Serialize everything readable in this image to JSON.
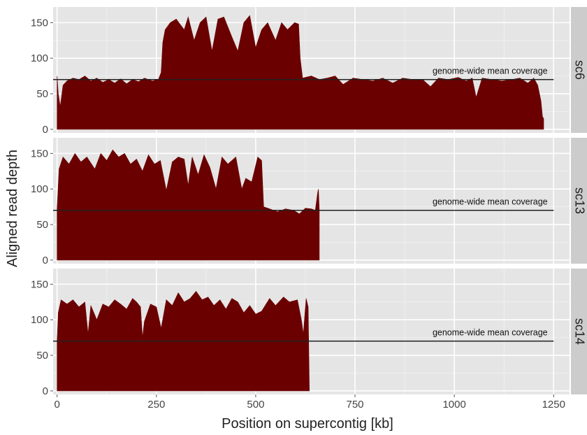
{
  "chart_data": {
    "type": "area",
    "xlabel": "Position on supercontig [kb]",
    "ylabel": "Aligned read depth",
    "xlim": [
      -10,
      1290
    ],
    "ylim": [
      -5,
      172
    ],
    "x_ticks": [
      0,
      250,
      500,
      750,
      1000,
      1250
    ],
    "y_ticks": [
      0,
      50,
      100,
      150
    ],
    "grid": true,
    "fill_color": "#6b0000",
    "panel_background": "#e5e5e5",
    "strip_background": "#cccccc",
    "mean_line": {
      "value": 70,
      "x_end": 1250,
      "label": "genome-wide mean coverage",
      "label_x": 1090
    },
    "facets": [
      {
        "name": "sc6",
        "length_kb": 1225,
        "profile": [
          [
            0,
            75
          ],
          [
            3,
            50
          ],
          [
            8,
            32
          ],
          [
            15,
            62
          ],
          [
            25,
            68
          ],
          [
            40,
            72
          ],
          [
            55,
            70
          ],
          [
            70,
            75
          ],
          [
            85,
            68
          ],
          [
            100,
            72
          ],
          [
            115,
            66
          ],
          [
            130,
            70
          ],
          [
            145,
            65
          ],
          [
            160,
            71
          ],
          [
            175,
            64
          ],
          [
            190,
            70
          ],
          [
            205,
            67
          ],
          [
            220,
            72
          ],
          [
            240,
            68
          ],
          [
            255,
            70
          ],
          [
            262,
            80
          ],
          [
            266,
            122
          ],
          [
            272,
            140
          ],
          [
            285,
            150
          ],
          [
            300,
            155
          ],
          [
            320,
            140
          ],
          [
            330,
            158
          ],
          [
            345,
            125
          ],
          [
            360,
            150
          ],
          [
            375,
            158
          ],
          [
            390,
            110
          ],
          [
            405,
            155
          ],
          [
            420,
            158
          ],
          [
            440,
            130
          ],
          [
            455,
            110
          ],
          [
            470,
            150
          ],
          [
            485,
            160
          ],
          [
            500,
            115
          ],
          [
            515,
            140
          ],
          [
            530,
            150
          ],
          [
            550,
            125
          ],
          [
            565,
            150
          ],
          [
            580,
            140
          ],
          [
            598,
            150
          ],
          [
            608,
            148
          ],
          [
            612,
            100
          ],
          [
            618,
            72
          ],
          [
            640,
            75
          ],
          [
            660,
            70
          ],
          [
            680,
            72
          ],
          [
            700,
            75
          ],
          [
            720,
            63
          ],
          [
            745,
            72
          ],
          [
            770,
            70
          ],
          [
            795,
            68
          ],
          [
            820,
            72
          ],
          [
            845,
            65
          ],
          [
            870,
            72
          ],
          [
            895,
            70
          ],
          [
            920,
            70
          ],
          [
            940,
            60
          ],
          [
            960,
            72
          ],
          [
            985,
            70
          ],
          [
            1010,
            73
          ],
          [
            1030,
            68
          ],
          [
            1045,
            72
          ],
          [
            1055,
            45
          ],
          [
            1070,
            72
          ],
          [
            1095,
            70
          ],
          [
            1120,
            68
          ],
          [
            1145,
            70
          ],
          [
            1165,
            72
          ],
          [
            1185,
            65
          ],
          [
            1200,
            72
          ],
          [
            1210,
            62
          ],
          [
            1218,
            40
          ],
          [
            1222,
            18
          ],
          [
            1225,
            15
          ]
        ]
      },
      {
        "name": "sc13",
        "length_kb": 660,
        "profile": [
          [
            0,
            72
          ],
          [
            5,
            128
          ],
          [
            15,
            145
          ],
          [
            30,
            135
          ],
          [
            45,
            150
          ],
          [
            60,
            138
          ],
          [
            75,
            145
          ],
          [
            95,
            128
          ],
          [
            110,
            150
          ],
          [
            125,
            140
          ],
          [
            140,
            155
          ],
          [
            155,
            145
          ],
          [
            170,
            150
          ],
          [
            185,
            135
          ],
          [
            200,
            142
          ],
          [
            215,
            125
          ],
          [
            230,
            148
          ],
          [
            245,
            135
          ],
          [
            260,
            140
          ],
          [
            275,
            98
          ],
          [
            290,
            138
          ],
          [
            305,
            145
          ],
          [
            320,
            142
          ],
          [
            330,
            105
          ],
          [
            340,
            145
          ],
          [
            355,
            120
          ],
          [
            370,
            148
          ],
          [
            385,
            130
          ],
          [
            400,
            100
          ],
          [
            415,
            145
          ],
          [
            430,
            135
          ],
          [
            450,
            145
          ],
          [
            465,
            100
          ],
          [
            475,
            115
          ],
          [
            490,
            110
          ],
          [
            505,
            145
          ],
          [
            515,
            140
          ],
          [
            520,
            75
          ],
          [
            535,
            72
          ],
          [
            555,
            68
          ],
          [
            575,
            72
          ],
          [
            595,
            70
          ],
          [
            610,
            65
          ],
          [
            625,
            73
          ],
          [
            640,
            72
          ],
          [
            650,
            70
          ],
          [
            656,
            95
          ],
          [
            658,
            100
          ],
          [
            660,
            70
          ]
        ]
      },
      {
        "name": "sc14",
        "length_kb": 635,
        "profile": [
          [
            0,
            70
          ],
          [
            3,
            110
          ],
          [
            10,
            128
          ],
          [
            25,
            122
          ],
          [
            40,
            128
          ],
          [
            55,
            118
          ],
          [
            70,
            125
          ],
          [
            78,
            80
          ],
          [
            85,
            120
          ],
          [
            100,
            100
          ],
          [
            115,
            122
          ],
          [
            130,
            118
          ],
          [
            145,
            128
          ],
          [
            160,
            122
          ],
          [
            175,
            115
          ],
          [
            190,
            130
          ],
          [
            200,
            125
          ],
          [
            210,
            118
          ],
          [
            215,
            75
          ],
          [
            220,
            98
          ],
          [
            235,
            122
          ],
          [
            250,
            118
          ],
          [
            262,
            88
          ],
          [
            275,
            128
          ],
          [
            290,
            120
          ],
          [
            305,
            138
          ],
          [
            320,
            125
          ],
          [
            335,
            130
          ],
          [
            350,
            140
          ],
          [
            365,
            128
          ],
          [
            380,
            132
          ],
          [
            395,
            120
          ],
          [
            410,
            128
          ],
          [
            425,
            115
          ],
          [
            440,
            130
          ],
          [
            455,
            125
          ],
          [
            470,
            110
          ],
          [
            485,
            120
          ],
          [
            500,
            108
          ],
          [
            515,
            112
          ],
          [
            535,
            130
          ],
          [
            550,
            120
          ],
          [
            570,
            132
          ],
          [
            585,
            125
          ],
          [
            605,
            128
          ],
          [
            615,
            100
          ],
          [
            620,
            80
          ],
          [
            627,
            130
          ],
          [
            632,
            118
          ],
          [
            635,
            0
          ]
        ]
      }
    ]
  }
}
